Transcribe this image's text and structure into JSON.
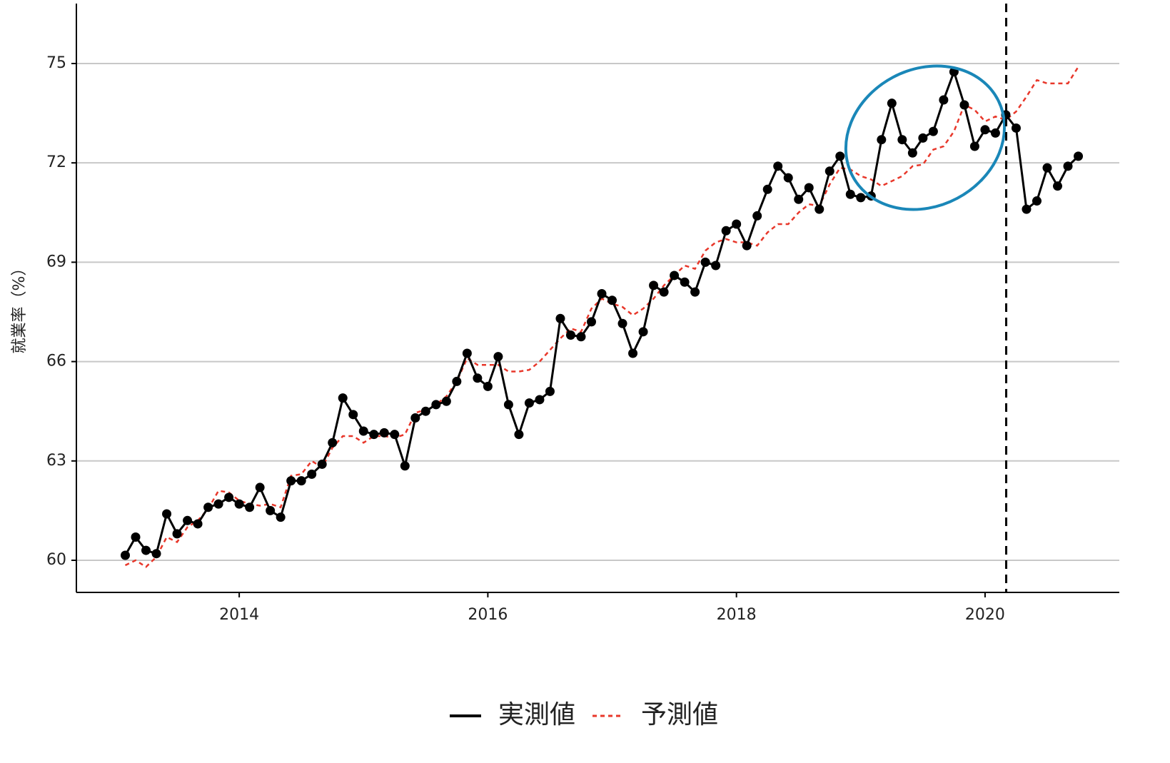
{
  "chart_data": {
    "type": "line",
    "ylabel": "就業率（%）",
    "x": [
      "2013-01",
      "2013-02",
      "2013-03",
      "2013-04",
      "2013-05",
      "2013-06",
      "2013-07",
      "2013-08",
      "2013-09",
      "2013-10",
      "2013-11",
      "2013-12",
      "2014-01",
      "2014-02",
      "2014-03",
      "2014-04",
      "2014-05",
      "2014-06",
      "2014-07",
      "2014-08",
      "2014-09",
      "2014-10",
      "2014-11",
      "2014-12",
      "2015-01",
      "2015-02",
      "2015-03",
      "2015-04",
      "2015-05",
      "2015-06",
      "2015-07",
      "2015-08",
      "2015-09",
      "2015-10",
      "2015-11",
      "2015-12",
      "2016-01",
      "2016-02",
      "2016-03",
      "2016-04",
      "2016-05",
      "2016-06",
      "2016-07",
      "2016-08",
      "2016-09",
      "2016-10",
      "2016-11",
      "2016-12",
      "2017-01",
      "2017-02",
      "2017-03",
      "2017-04",
      "2017-05",
      "2017-06",
      "2017-07",
      "2017-08",
      "2017-09",
      "2017-10",
      "2017-11",
      "2017-12",
      "2018-01",
      "2018-02",
      "2018-03",
      "2018-04",
      "2018-05",
      "2018-06",
      "2018-07",
      "2018-08",
      "2018-09",
      "2018-10",
      "2018-11",
      "2018-12",
      "2019-01",
      "2019-02",
      "2019-03",
      "2019-04",
      "2019-05",
      "2019-06",
      "2019-07",
      "2019-08",
      "2019-09",
      "2019-10",
      "2019-11",
      "2019-12",
      "2020-01",
      "2020-02",
      "2020-03",
      "2020-04",
      "2020-05",
      "2020-06",
      "2020-07",
      "2020-08",
      "2020-09"
    ],
    "series": [
      {
        "name": "実測値",
        "color": "#000000",
        "line_style": "solid",
        "markers": true,
        "values": [
          60.15,
          60.7,
          60.3,
          60.2,
          61.4,
          60.8,
          61.2,
          61.1,
          61.6,
          61.7,
          61.9,
          61.7,
          61.6,
          62.2,
          61.5,
          61.3,
          62.4,
          62.4,
          62.6,
          62.9,
          63.55,
          64.9,
          64.4,
          63.9,
          63.8,
          63.85,
          63.8,
          62.85,
          64.3,
          64.5,
          64.7,
          64.8,
          65.4,
          66.25,
          65.5,
          65.25,
          66.15,
          64.7,
          63.8,
          64.75,
          64.85,
          65.1,
          67.3,
          66.8,
          66.75,
          67.2,
          68.05,
          67.85,
          67.15,
          66.25,
          66.9,
          68.3,
          68.1,
          68.6,
          68.4,
          68.1,
          69.0,
          68.9,
          69.95,
          70.15,
          69.5,
          70.4,
          71.2,
          71.9,
          71.55,
          70.9,
          71.25,
          70.6,
          71.75,
          72.2,
          71.05,
          70.95,
          71.0,
          72.7,
          73.8,
          72.7,
          72.3,
          72.75,
          72.95,
          73.9,
          74.75,
          73.75,
          72.5,
          73.0,
          72.9,
          73.45,
          73.05,
          70.6,
          70.85,
          71.85,
          71.3,
          71.9,
          72.2
        ]
      },
      {
        "name": "予測値",
        "color": "#e8372a",
        "line_style": "dashed",
        "markers": false,
        "values": [
          59.85,
          60.0,
          59.8,
          60.1,
          60.7,
          60.55,
          61.0,
          61.2,
          61.55,
          62.1,
          62.05,
          61.8,
          61.7,
          61.65,
          61.7,
          61.6,
          62.55,
          62.6,
          63.0,
          62.8,
          63.4,
          63.75,
          63.75,
          63.55,
          63.75,
          63.75,
          63.7,
          63.8,
          64.45,
          64.55,
          64.7,
          64.95,
          65.4,
          66.1,
          65.9,
          65.9,
          65.9,
          65.7,
          65.7,
          65.75,
          66.0,
          66.35,
          66.7,
          67.0,
          66.9,
          67.6,
          67.9,
          67.75,
          67.65,
          67.4,
          67.6,
          67.9,
          68.3,
          68.6,
          68.9,
          68.8,
          69.35,
          69.6,
          69.7,
          69.6,
          69.6,
          69.5,
          69.9,
          70.15,
          70.15,
          70.5,
          70.75,
          70.7,
          71.35,
          71.85,
          71.8,
          71.6,
          71.5,
          71.3,
          71.45,
          71.6,
          71.9,
          71.95,
          72.4,
          72.5,
          72.95,
          73.75,
          73.6,
          73.25,
          73.4,
          73.3,
          73.55,
          74.0,
          74.5,
          74.4,
          74.4,
          74.4,
          74.9
        ]
      }
    ],
    "xlim": [
      2012.69,
      2021.08
    ],
    "xticks": [
      2014,
      2016,
      2018,
      2020
    ],
    "ylim": [
      59.03,
      76.81
    ],
    "yticks": [
      60,
      63,
      66,
      69,
      72,
      75
    ],
    "grid": "y",
    "vline": 2020.17,
    "legend": "bottom"
  }
}
